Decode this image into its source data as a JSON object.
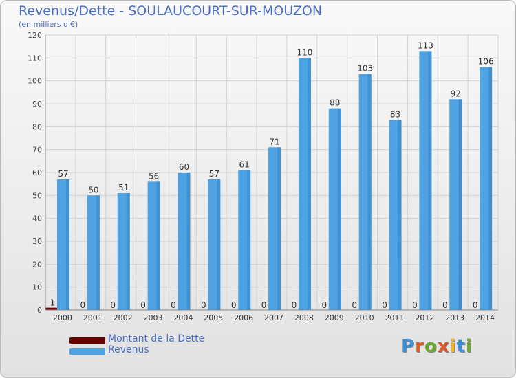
{
  "chart_data": {
    "type": "bar",
    "title": "Revenus/Dette - SOULAUCOURT-SUR-MOUZON",
    "subtitle": "(en milliers d'€)",
    "categories": [
      "2000",
      "2001",
      "2002",
      "2003",
      "2004",
      "2005",
      "2006",
      "2007",
      "2008",
      "2009",
      "2010",
      "2011",
      "2012",
      "2013",
      "2014"
    ],
    "series": [
      {
        "name": "Montant de la Dette",
        "color": "#6b0000",
        "values": [
          1,
          0,
          0,
          0,
          0,
          0,
          0,
          0,
          0,
          0,
          0,
          0,
          0,
          0,
          0
        ]
      },
      {
        "name": "Revenus",
        "color": "#4fa3e3",
        "values": [
          57,
          50,
          51,
          56,
          60,
          57,
          61,
          71,
          110,
          88,
          103,
          83,
          113,
          92,
          106
        ]
      }
    ],
    "ylim": [
      0,
      120
    ],
    "yticks": [
      0,
      10,
      20,
      30,
      40,
      50,
      60,
      70,
      80,
      90,
      100,
      110,
      120
    ],
    "grid": true,
    "legend_position": "bottom-left"
  },
  "legend": {
    "debt_label": "Montant de la Dette",
    "revenue_label": "Revenus"
  },
  "logo": {
    "text": "Proxiti",
    "letter_colors": [
      "#3a8fd6",
      "#e0592a",
      "#6aa82b",
      "#e0592a",
      "#f0b323",
      "#3a8fd6",
      "#6aa82b"
    ]
  }
}
